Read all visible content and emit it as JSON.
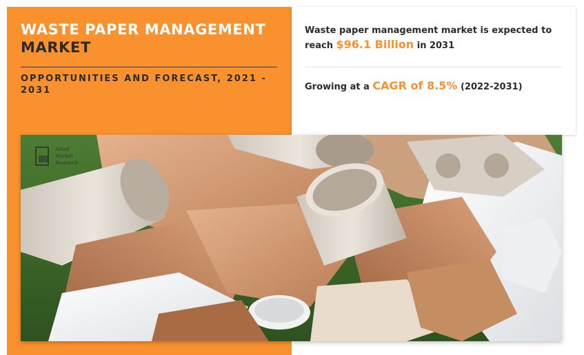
{
  "title": {
    "line1": "WASTE PAPER MANAGEMENT",
    "line2": "MARKET"
  },
  "subtitle": "OPPORTUNITIES AND FORECAST, 2021 - 2031",
  "stat1": {
    "prefix": "Waste paper management market is expected to reach",
    "value": "$96.1 Billion",
    "suffix": "in 2031"
  },
  "stat2": {
    "prefix": "Growing at a",
    "value": "CAGR of 8.5%",
    "suffix": "(2022-2031)"
  },
  "logo": {
    "line1": "Allied",
    "line2": "Market",
    "line3": "Research"
  },
  "colors": {
    "accent": "#f9912f",
    "text": "#2b2b2b"
  }
}
